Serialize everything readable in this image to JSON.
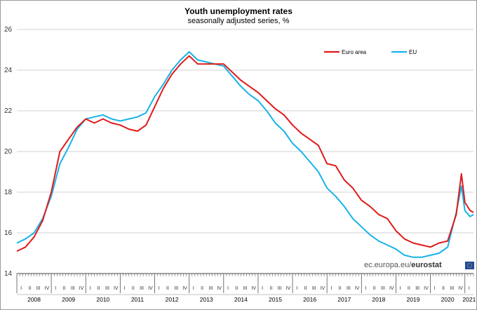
{
  "chart_data": {
    "type": "line",
    "title": "Youth unemployment rates",
    "subtitle": "seasonally adjusted series, %",
    "ylim": [
      14,
      26
    ],
    "yticks": [
      14,
      16,
      18,
      20,
      22,
      24,
      26
    ],
    "years": [
      "2008",
      "2009",
      "2010",
      "2011",
      "2012",
      "2013",
      "2014",
      "2015",
      "2016",
      "2017",
      "2018",
      "2019",
      "2020",
      "2021"
    ],
    "quarters": [
      "I",
      "II",
      "III",
      "IV"
    ],
    "grid": true,
    "legend_position": "top-right",
    "x_start": 2008.0,
    "x_end": 2021.25,
    "series": [
      {
        "name": "Euro area",
        "color": "#e01a1a",
        "points": [
          [
            2008.0,
            15.1
          ],
          [
            2008.25,
            15.3
          ],
          [
            2008.5,
            15.8
          ],
          [
            2008.75,
            16.6
          ],
          [
            2009.0,
            18.0
          ],
          [
            2009.25,
            20.0
          ],
          [
            2009.5,
            20.6
          ],
          [
            2009.75,
            21.2
          ],
          [
            2010.0,
            21.6
          ],
          [
            2010.25,
            21.4
          ],
          [
            2010.5,
            21.6
          ],
          [
            2010.75,
            21.4
          ],
          [
            2011.0,
            21.3
          ],
          [
            2011.25,
            21.1
          ],
          [
            2011.5,
            21.0
          ],
          [
            2011.75,
            21.3
          ],
          [
            2012.0,
            22.2
          ],
          [
            2012.25,
            23.1
          ],
          [
            2012.5,
            23.8
          ],
          [
            2012.75,
            24.3
          ],
          [
            2013.0,
            24.7
          ],
          [
            2013.25,
            24.3
          ],
          [
            2013.5,
            24.3
          ],
          [
            2013.75,
            24.3
          ],
          [
            2014.0,
            24.3
          ],
          [
            2014.25,
            23.9
          ],
          [
            2014.5,
            23.5
          ],
          [
            2014.75,
            23.2
          ],
          [
            2015.0,
            22.9
          ],
          [
            2015.25,
            22.5
          ],
          [
            2015.5,
            22.1
          ],
          [
            2015.75,
            21.8
          ],
          [
            2016.0,
            21.3
          ],
          [
            2016.25,
            20.9
          ],
          [
            2016.5,
            20.6
          ],
          [
            2016.75,
            20.3
          ],
          [
            2017.0,
            19.4
          ],
          [
            2017.25,
            19.3
          ],
          [
            2017.5,
            18.6
          ],
          [
            2017.75,
            18.2
          ],
          [
            2018.0,
            17.6
          ],
          [
            2018.25,
            17.3
          ],
          [
            2018.5,
            16.9
          ],
          [
            2018.75,
            16.7
          ],
          [
            2019.0,
            16.1
          ],
          [
            2019.25,
            15.7
          ],
          [
            2019.5,
            15.5
          ],
          [
            2019.75,
            15.4
          ],
          [
            2020.0,
            15.3
          ],
          [
            2020.25,
            15.5
          ],
          [
            2020.5,
            15.6
          ],
          [
            2020.75,
            16.9
          ],
          [
            2020.9,
            18.9
          ],
          [
            2021.0,
            17.5
          ],
          [
            2021.15,
            17.1
          ],
          [
            2021.25,
            17.0
          ]
        ]
      },
      {
        "name": "EU",
        "color": "#17b3e8",
        "points": [
          [
            2008.0,
            15.5
          ],
          [
            2008.25,
            15.7
          ],
          [
            2008.5,
            16.0
          ],
          [
            2008.75,
            16.7
          ],
          [
            2009.0,
            17.8
          ],
          [
            2009.25,
            19.4
          ],
          [
            2009.5,
            20.2
          ],
          [
            2009.75,
            21.1
          ],
          [
            2010.0,
            21.6
          ],
          [
            2010.25,
            21.7
          ],
          [
            2010.5,
            21.8
          ],
          [
            2010.75,
            21.6
          ],
          [
            2011.0,
            21.5
          ],
          [
            2011.25,
            21.6
          ],
          [
            2011.5,
            21.7
          ],
          [
            2011.75,
            21.9
          ],
          [
            2012.0,
            22.7
          ],
          [
            2012.25,
            23.3
          ],
          [
            2012.5,
            24.0
          ],
          [
            2012.75,
            24.5
          ],
          [
            2013.0,
            24.9
          ],
          [
            2013.25,
            24.5
          ],
          [
            2013.5,
            24.4
          ],
          [
            2013.75,
            24.3
          ],
          [
            2014.0,
            24.2
          ],
          [
            2014.25,
            23.7
          ],
          [
            2014.5,
            23.2
          ],
          [
            2014.75,
            22.8
          ],
          [
            2015.0,
            22.5
          ],
          [
            2015.25,
            22.0
          ],
          [
            2015.5,
            21.4
          ],
          [
            2015.75,
            21.0
          ],
          [
            2016.0,
            20.4
          ],
          [
            2016.25,
            20.0
          ],
          [
            2016.5,
            19.5
          ],
          [
            2016.75,
            19.0
          ],
          [
            2017.0,
            18.2
          ],
          [
            2017.25,
            17.8
          ],
          [
            2017.5,
            17.3
          ],
          [
            2017.75,
            16.7
          ],
          [
            2018.0,
            16.3
          ],
          [
            2018.25,
            15.9
          ],
          [
            2018.5,
            15.6
          ],
          [
            2018.75,
            15.4
          ],
          [
            2019.0,
            15.2
          ],
          [
            2019.25,
            14.9
          ],
          [
            2019.5,
            14.8
          ],
          [
            2019.75,
            14.8
          ],
          [
            2020.0,
            14.9
          ],
          [
            2020.25,
            15.0
          ],
          [
            2020.5,
            15.3
          ],
          [
            2020.75,
            17.0
          ],
          [
            2020.9,
            18.3
          ],
          [
            2021.0,
            17.1
          ],
          [
            2021.15,
            16.8
          ],
          [
            2021.25,
            16.9
          ]
        ]
      }
    ]
  },
  "footer": {
    "credit_prefix": "ec.europa.eu/",
    "credit_brand": "eurostat"
  }
}
